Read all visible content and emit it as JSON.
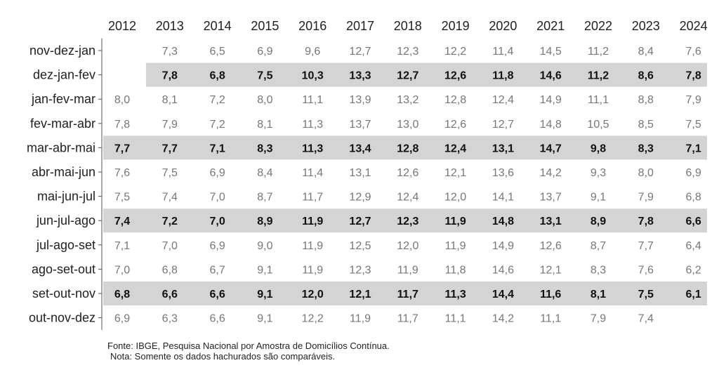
{
  "chart_data": {
    "type": "table",
    "title": "",
    "columns": [
      "2012",
      "2013",
      "2014",
      "2015",
      "2016",
      "2017",
      "2018",
      "2019",
      "2020",
      "2021",
      "2022",
      "2023",
      "2024"
    ],
    "rows": [
      {
        "label": "nov-dez-jan",
        "highlighted": false,
        "values": [
          null,
          "7,3",
          "6,5",
          "6,9",
          "9,6",
          "12,7",
          "12,3",
          "12,2",
          "11,4",
          "14,5",
          "11,2",
          "8,4",
          "7,6"
        ]
      },
      {
        "label": "dez-jan-fev",
        "highlighted": true,
        "values": [
          null,
          "7,8",
          "6,8",
          "7,5",
          "10,3",
          "13,3",
          "12,7",
          "12,6",
          "11,8",
          "14,6",
          "11,2",
          "8,6",
          "7,8"
        ]
      },
      {
        "label": "jan-fev-mar",
        "highlighted": false,
        "values": [
          "8,0",
          "8,1",
          "7,2",
          "8,0",
          "11,1",
          "13,9",
          "13,2",
          "12,8",
          "12,4",
          "14,9",
          "11,1",
          "8,8",
          "7,9"
        ]
      },
      {
        "label": "fev-mar-abr",
        "highlighted": false,
        "values": [
          "7,8",
          "7,9",
          "7,2",
          "8,1",
          "11,3",
          "13,7",
          "13,0",
          "12,6",
          "12,7",
          "14,8",
          "10,5",
          "8,5",
          "7,5"
        ]
      },
      {
        "label": "mar-abr-mai",
        "highlighted": true,
        "values": [
          "7,7",
          "7,7",
          "7,1",
          "8,3",
          "11,3",
          "13,4",
          "12,8",
          "12,4",
          "13,1",
          "14,7",
          "9,8",
          "8,3",
          "7,1"
        ]
      },
      {
        "label": "abr-mai-jun",
        "highlighted": false,
        "values": [
          "7,6",
          "7,5",
          "6,9",
          "8,4",
          "11,4",
          "13,1",
          "12,6",
          "12,1",
          "13,6",
          "14,2",
          "9,3",
          "8,0",
          "6,9"
        ]
      },
      {
        "label": "mai-jun-jul",
        "highlighted": false,
        "values": [
          "7,5",
          "7,4",
          "7,0",
          "8,7",
          "11,7",
          "12,9",
          "12,4",
          "12,0",
          "14,1",
          "13,7",
          "9,1",
          "7,9",
          "6,8"
        ]
      },
      {
        "label": "jun-jul-ago",
        "highlighted": true,
        "values": [
          "7,4",
          "7,2",
          "7,0",
          "8,9",
          "11,9",
          "12,7",
          "12,3",
          "11,9",
          "14,8",
          "13,1",
          "8,9",
          "7,8",
          "6,6"
        ]
      },
      {
        "label": "jul-ago-set",
        "highlighted": false,
        "values": [
          "7,1",
          "7,0",
          "6,9",
          "9,0",
          "11,9",
          "12,5",
          "12,0",
          "11,9",
          "14,9",
          "12,6",
          "8,7",
          "7,7",
          "6,4"
        ]
      },
      {
        "label": "ago-set-out",
        "highlighted": false,
        "values": [
          "7,0",
          "6,8",
          "6,7",
          "9,1",
          "11,9",
          "12,3",
          "11,9",
          "11,8",
          "14,6",
          "12,1",
          "8,3",
          "7,6",
          "6,2"
        ]
      },
      {
        "label": "set-out-nov",
        "highlighted": true,
        "values": [
          "6,8",
          "6,6",
          "6,6",
          "9,1",
          "12,0",
          "12,1",
          "11,7",
          "11,3",
          "14,4",
          "11,6",
          "8,1",
          "7,5",
          "6,1"
        ]
      },
      {
        "label": "out-nov-dez",
        "highlighted": false,
        "values": [
          "6,9",
          "6,3",
          "6,6",
          "9,1",
          "12,2",
          "11,9",
          "11,7",
          "11,1",
          "14,2",
          "11,1",
          "7,9",
          "7,4",
          null
        ]
      }
    ],
    "colors": {
      "highlight_band": "#d4d4d4",
      "plain_text": "#777777",
      "highlight_text": "#111111"
    }
  },
  "footer": {
    "source": "Fonte: IBGE, Pesquisa Nacional por Amostra de Domicílios Contínua.",
    "note": "Nota: Somente os dados hachurados são comparáveis."
  }
}
